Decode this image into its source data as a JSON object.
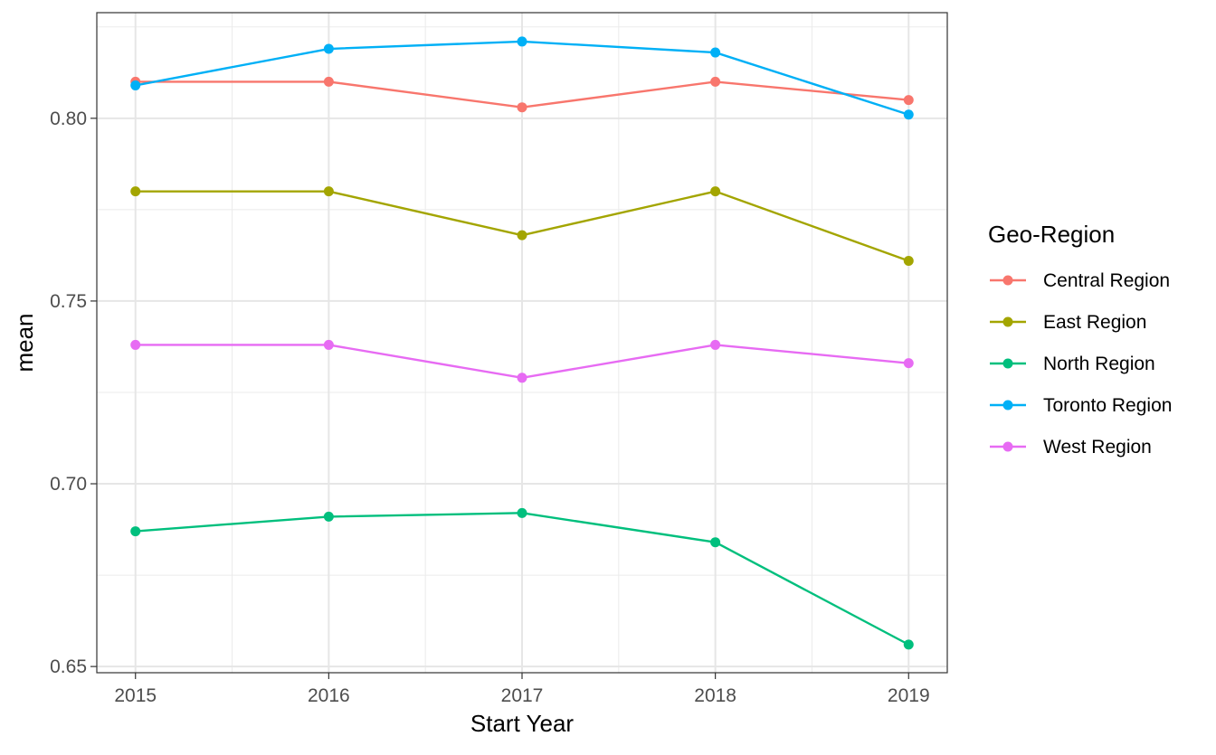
{
  "chart_data": {
    "type": "line",
    "title": "",
    "xlabel": "Start Year",
    "ylabel": "mean",
    "x": [
      2015,
      2016,
      2017,
      2018,
      2019
    ],
    "x_ticks": [
      "2015",
      "2016",
      "2017",
      "2018",
      "2019"
    ],
    "xlim": [
      2014.8,
      2019.2
    ],
    "y_ticks": [
      0.65,
      0.7,
      0.75,
      0.8
    ],
    "y_tick_labels": [
      "0.65",
      "0.70",
      "0.75",
      "0.80"
    ],
    "ylim": [
      0.6483,
      0.8289
    ],
    "grid": true,
    "legend": {
      "title": "Geo-Region",
      "position": "right"
    },
    "series": [
      {
        "name": "Central Region",
        "color": "#F8766D",
        "values": [
          0.81,
          0.81,
          0.803,
          0.81,
          0.805
        ]
      },
      {
        "name": "East Region",
        "color": "#A3A500",
        "values": [
          0.78,
          0.78,
          0.768,
          0.78,
          0.761
        ]
      },
      {
        "name": "North Region",
        "color": "#00BF7D",
        "values": [
          0.687,
          0.691,
          0.692,
          0.684,
          0.656
        ]
      },
      {
        "name": "Toronto Region",
        "color": "#00B0F6",
        "values": [
          0.809,
          0.819,
          0.821,
          0.818,
          0.801
        ]
      },
      {
        "name": "West Region",
        "color": "#E76BF3",
        "values": [
          0.738,
          0.738,
          0.729,
          0.738,
          0.733
        ]
      }
    ]
  }
}
